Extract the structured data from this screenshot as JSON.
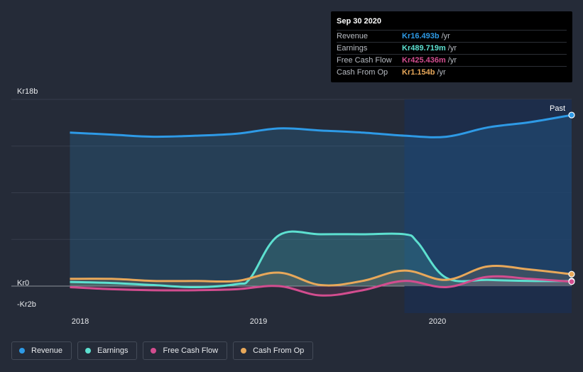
{
  "tooltip": {
    "date": "Sep 30 2020",
    "rows": [
      {
        "name": "Revenue",
        "value": "Kr16.493b",
        "unit": "/yr",
        "color": "#2e9ae6"
      },
      {
        "name": "Earnings",
        "value": "Kr489.719m",
        "unit": "/yr",
        "color": "#5de0d0"
      },
      {
        "name": "Free Cash Flow",
        "value": "Kr425.436m",
        "unit": "/yr",
        "color": "#d34d8f"
      },
      {
        "name": "Cash From Op",
        "value": "Kr1.154b",
        "unit": "/yr",
        "color": "#e8a85a"
      }
    ]
  },
  "past_label": "Past",
  "legend": [
    {
      "name": "Revenue",
      "color": "#2e9ae6"
    },
    {
      "name": "Earnings",
      "color": "#5de0d0"
    },
    {
      "name": "Free Cash Flow",
      "color": "#d34d8f"
    },
    {
      "name": "Cash From Op",
      "color": "#e8a85a"
    }
  ],
  "chart_data": {
    "type": "area",
    "y_tick_labels": [
      "Kr18b",
      "Kr0",
      "-Kr2b"
    ],
    "y_ticks": [
      18,
      0,
      -2
    ],
    "x_tick_labels": [
      "2018",
      "2019",
      "2020"
    ],
    "x_ticks": [
      2018.0,
      2019.0,
      2020.0
    ],
    "ylim": [
      -2.6,
      18
    ],
    "xlim": [
      2017.4,
      2020.75
    ],
    "past_start": 2019.75,
    "grid": true,
    "legend_position": "bottom",
    "series": [
      {
        "name": "Revenue",
        "color": "#2e9ae6",
        "fill": true,
        "x": [
          2017.75,
          2018.0,
          2018.25,
          2018.5,
          2018.75,
          2019.0,
          2019.25,
          2019.5,
          2019.75,
          2020.0,
          2020.25,
          2020.5,
          2020.75
        ],
        "y": [
          14.8,
          14.6,
          14.4,
          14.5,
          14.7,
          15.2,
          15.0,
          14.8,
          14.5,
          14.4,
          15.3,
          15.8,
          16.49
        ]
      },
      {
        "name": "Earnings",
        "color": "#5de0d0",
        "fill": true,
        "x": [
          2017.75,
          2018.0,
          2018.25,
          2018.5,
          2018.75,
          2018.83,
          2019.0,
          2019.25,
          2019.5,
          2019.75,
          2019.83,
          2020.0,
          2020.25,
          2020.5,
          2020.75
        ],
        "y": [
          0.4,
          0.3,
          0.1,
          -0.1,
          0.2,
          0.8,
          4.9,
          5.0,
          5.0,
          5.0,
          4.2,
          0.8,
          0.6,
          0.5,
          0.49
        ]
      },
      {
        "name": "Free Cash Flow",
        "color": "#d34d8f",
        "fill": true,
        "x": [
          2017.75,
          2018.0,
          2018.25,
          2018.5,
          2018.75,
          2019.0,
          2019.25,
          2019.5,
          2019.75,
          2020.0,
          2020.25,
          2020.5,
          2020.75
        ],
        "y": [
          -0.1,
          -0.3,
          -0.4,
          -0.4,
          -0.3,
          0.0,
          -0.9,
          -0.4,
          0.5,
          -0.1,
          0.9,
          0.7,
          0.43
        ]
      },
      {
        "name": "Cash From Op",
        "color": "#e8a85a",
        "fill": true,
        "x": [
          2017.75,
          2018.0,
          2018.25,
          2018.5,
          2018.75,
          2019.0,
          2019.25,
          2019.5,
          2019.75,
          2020.0,
          2020.25,
          2020.5,
          2020.75
        ],
        "y": [
          0.7,
          0.7,
          0.5,
          0.5,
          0.5,
          1.3,
          0.1,
          0.5,
          1.5,
          0.6,
          1.9,
          1.6,
          1.15
        ]
      }
    ]
  }
}
